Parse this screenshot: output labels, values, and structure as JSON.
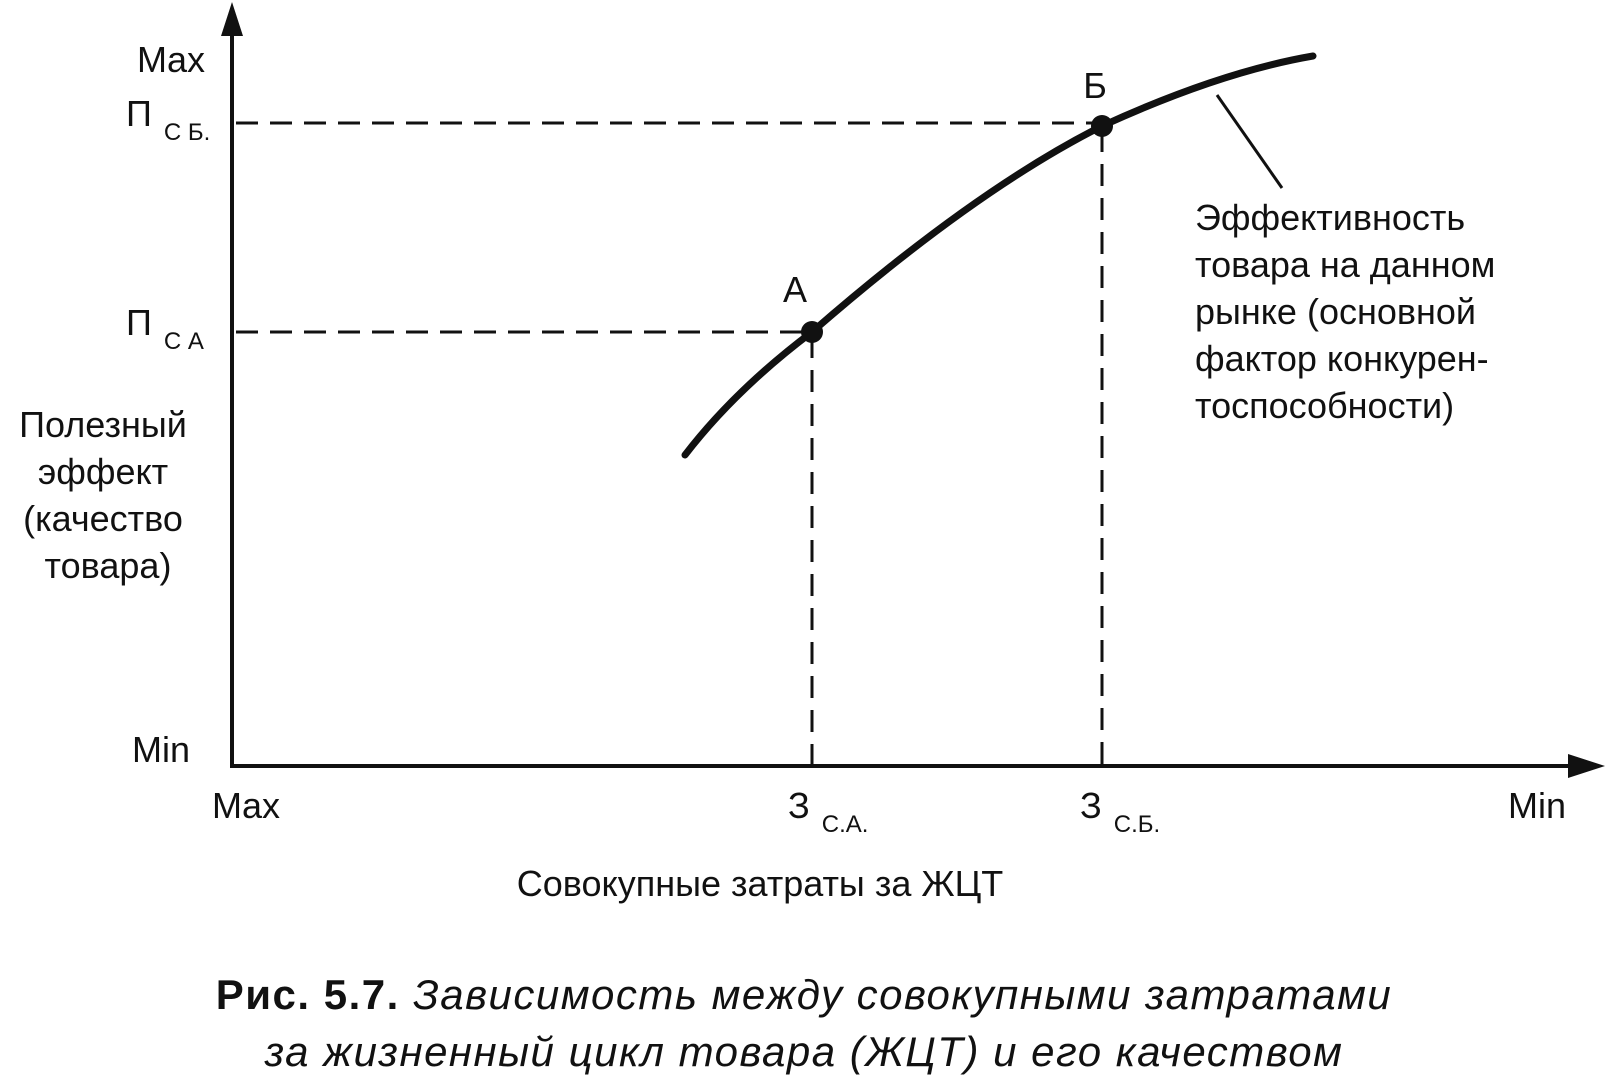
{
  "colors": {
    "ink": "#111111",
    "background": "#ffffff"
  },
  "y_axis": {
    "max_label": "Max",
    "min_label": "Min",
    "level_b": {
      "main": "П",
      "sub": "С Б."
    },
    "level_a": {
      "main": "П",
      "sub": "С А"
    },
    "title_lines": [
      "Полезный",
      "эффект",
      "(качество",
      "товара)"
    ]
  },
  "x_axis": {
    "max_label": "Max",
    "min_label": "Min",
    "level_a": {
      "main": "З",
      "sub": "С.А."
    },
    "level_b": {
      "main": "З",
      "sub": "С.Б."
    },
    "title": "Совокупные затраты за ЖЦТ"
  },
  "points": {
    "a_label": "А",
    "b_label": "Б"
  },
  "curve_note_lines": [
    "Эффективность",
    "товара на данном",
    "рынке (основной",
    "фактор конкурен-",
    "тоспособности)"
  ],
  "caption": {
    "label": "Рис. 5.7.",
    "line1": "Зависимость между совокупными затратами",
    "line2": "за жизненный цикл товара (ЖЦТ) и его качеством"
  }
}
